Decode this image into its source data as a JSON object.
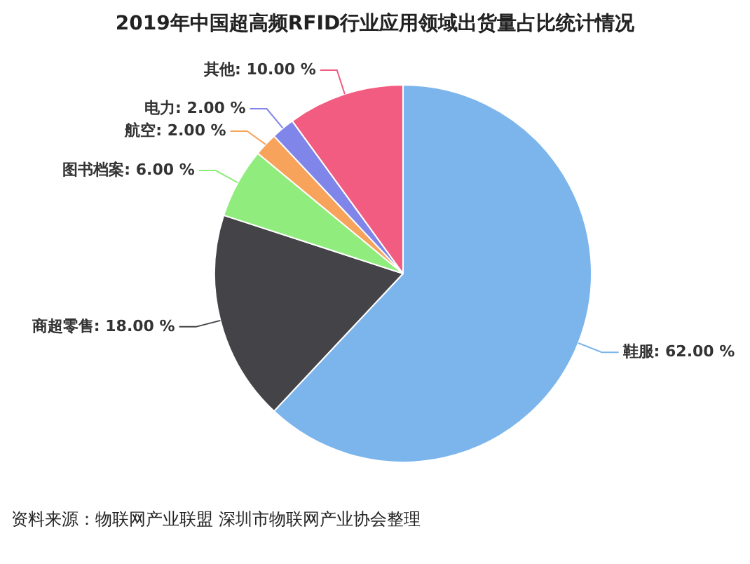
{
  "chart_data": {
    "type": "pie",
    "title": "2019年中国超高频RFID行业应用领域出货量占比统计情况",
    "categories": [
      "鞋服",
      "商超零售",
      "图书档案",
      "航空",
      "电力",
      "其他"
    ],
    "values": [
      62,
      18,
      6,
      2,
      2,
      10
    ],
    "value_labels": [
      "62.00 %",
      "18.00 %",
      "6.00 %",
      "2.00 %",
      "2.00 %",
      "10.00 %"
    ],
    "colors": [
      "#7cb5ec",
      "#434348",
      "#90ed7d",
      "#f7a35c",
      "#8085e9",
      "#f15c80"
    ],
    "legend": false,
    "annotations": [
      "资料来源：物联网产业联盟 深圳市物联网产业协会整理"
    ]
  }
}
